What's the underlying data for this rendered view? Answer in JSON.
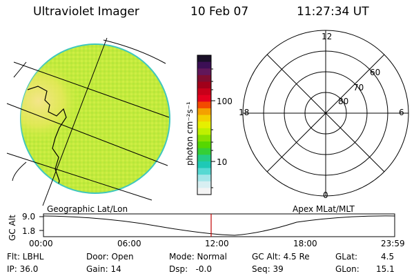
{
  "header": {
    "title": "Ultraviolet Imager",
    "date": "10 Feb 07",
    "time": "11:27:34 UT"
  },
  "colorbar": {
    "unit_label": "photon cm⁻²s⁻¹",
    "tick_labels": [
      "100",
      "10"
    ],
    "colors": [
      "#1a1028",
      "#3c0f55",
      "#61175a",
      "#7f0d30",
      "#a1001a",
      "#c8001a",
      "#e4001f",
      "#f34a00",
      "#f4a000",
      "#f3d100",
      "#e6ef00",
      "#bff000",
      "#88e000",
      "#56d700",
      "#35cf36",
      "#25cc86",
      "#1ec9b6",
      "#57d9d3",
      "#a5e6e9",
      "#d8eff2",
      "#f4f4f4"
    ]
  },
  "geo_panel": {
    "caption": "Geographic Lat/Lon",
    "image_colors": {
      "fill": "#c5ec3a",
      "edge": "#40c8c0",
      "hot": "#f2e27a"
    }
  },
  "polar_panel": {
    "caption": "Apex MLat/MLT",
    "mlt_labels": [
      "12",
      "18",
      "6",
      "0"
    ],
    "mlat_labels": [
      "60",
      "70",
      "80"
    ]
  },
  "altitude_plot": {
    "ylabel": "GC Alt",
    "y_tick_labels": [
      "9.0",
      "1.8"
    ],
    "x_tick_labels": [
      "00:00",
      "06:00",
      "12:00",
      "18:00",
      "23:59"
    ],
    "current_time_marker_hours": 11.46,
    "marker_color": "#c00000"
  },
  "status": {
    "row1": {
      "filter": "Flt: LBHL",
      "door": "Door: Open",
      "mode": "Mode: Normal",
      "gc_alt": "GC Alt: 4.5 Re",
      "glat": "GLat:",
      "glat_value": "4.5"
    },
    "row2": {
      "ip": "IP: 36.0",
      "gain": "Gain: 14",
      "dsp": "Dsp:   -0.0",
      "seq": "Seq: 39",
      "glon": "GLon:",
      "glon_value": "15.1"
    }
  }
}
